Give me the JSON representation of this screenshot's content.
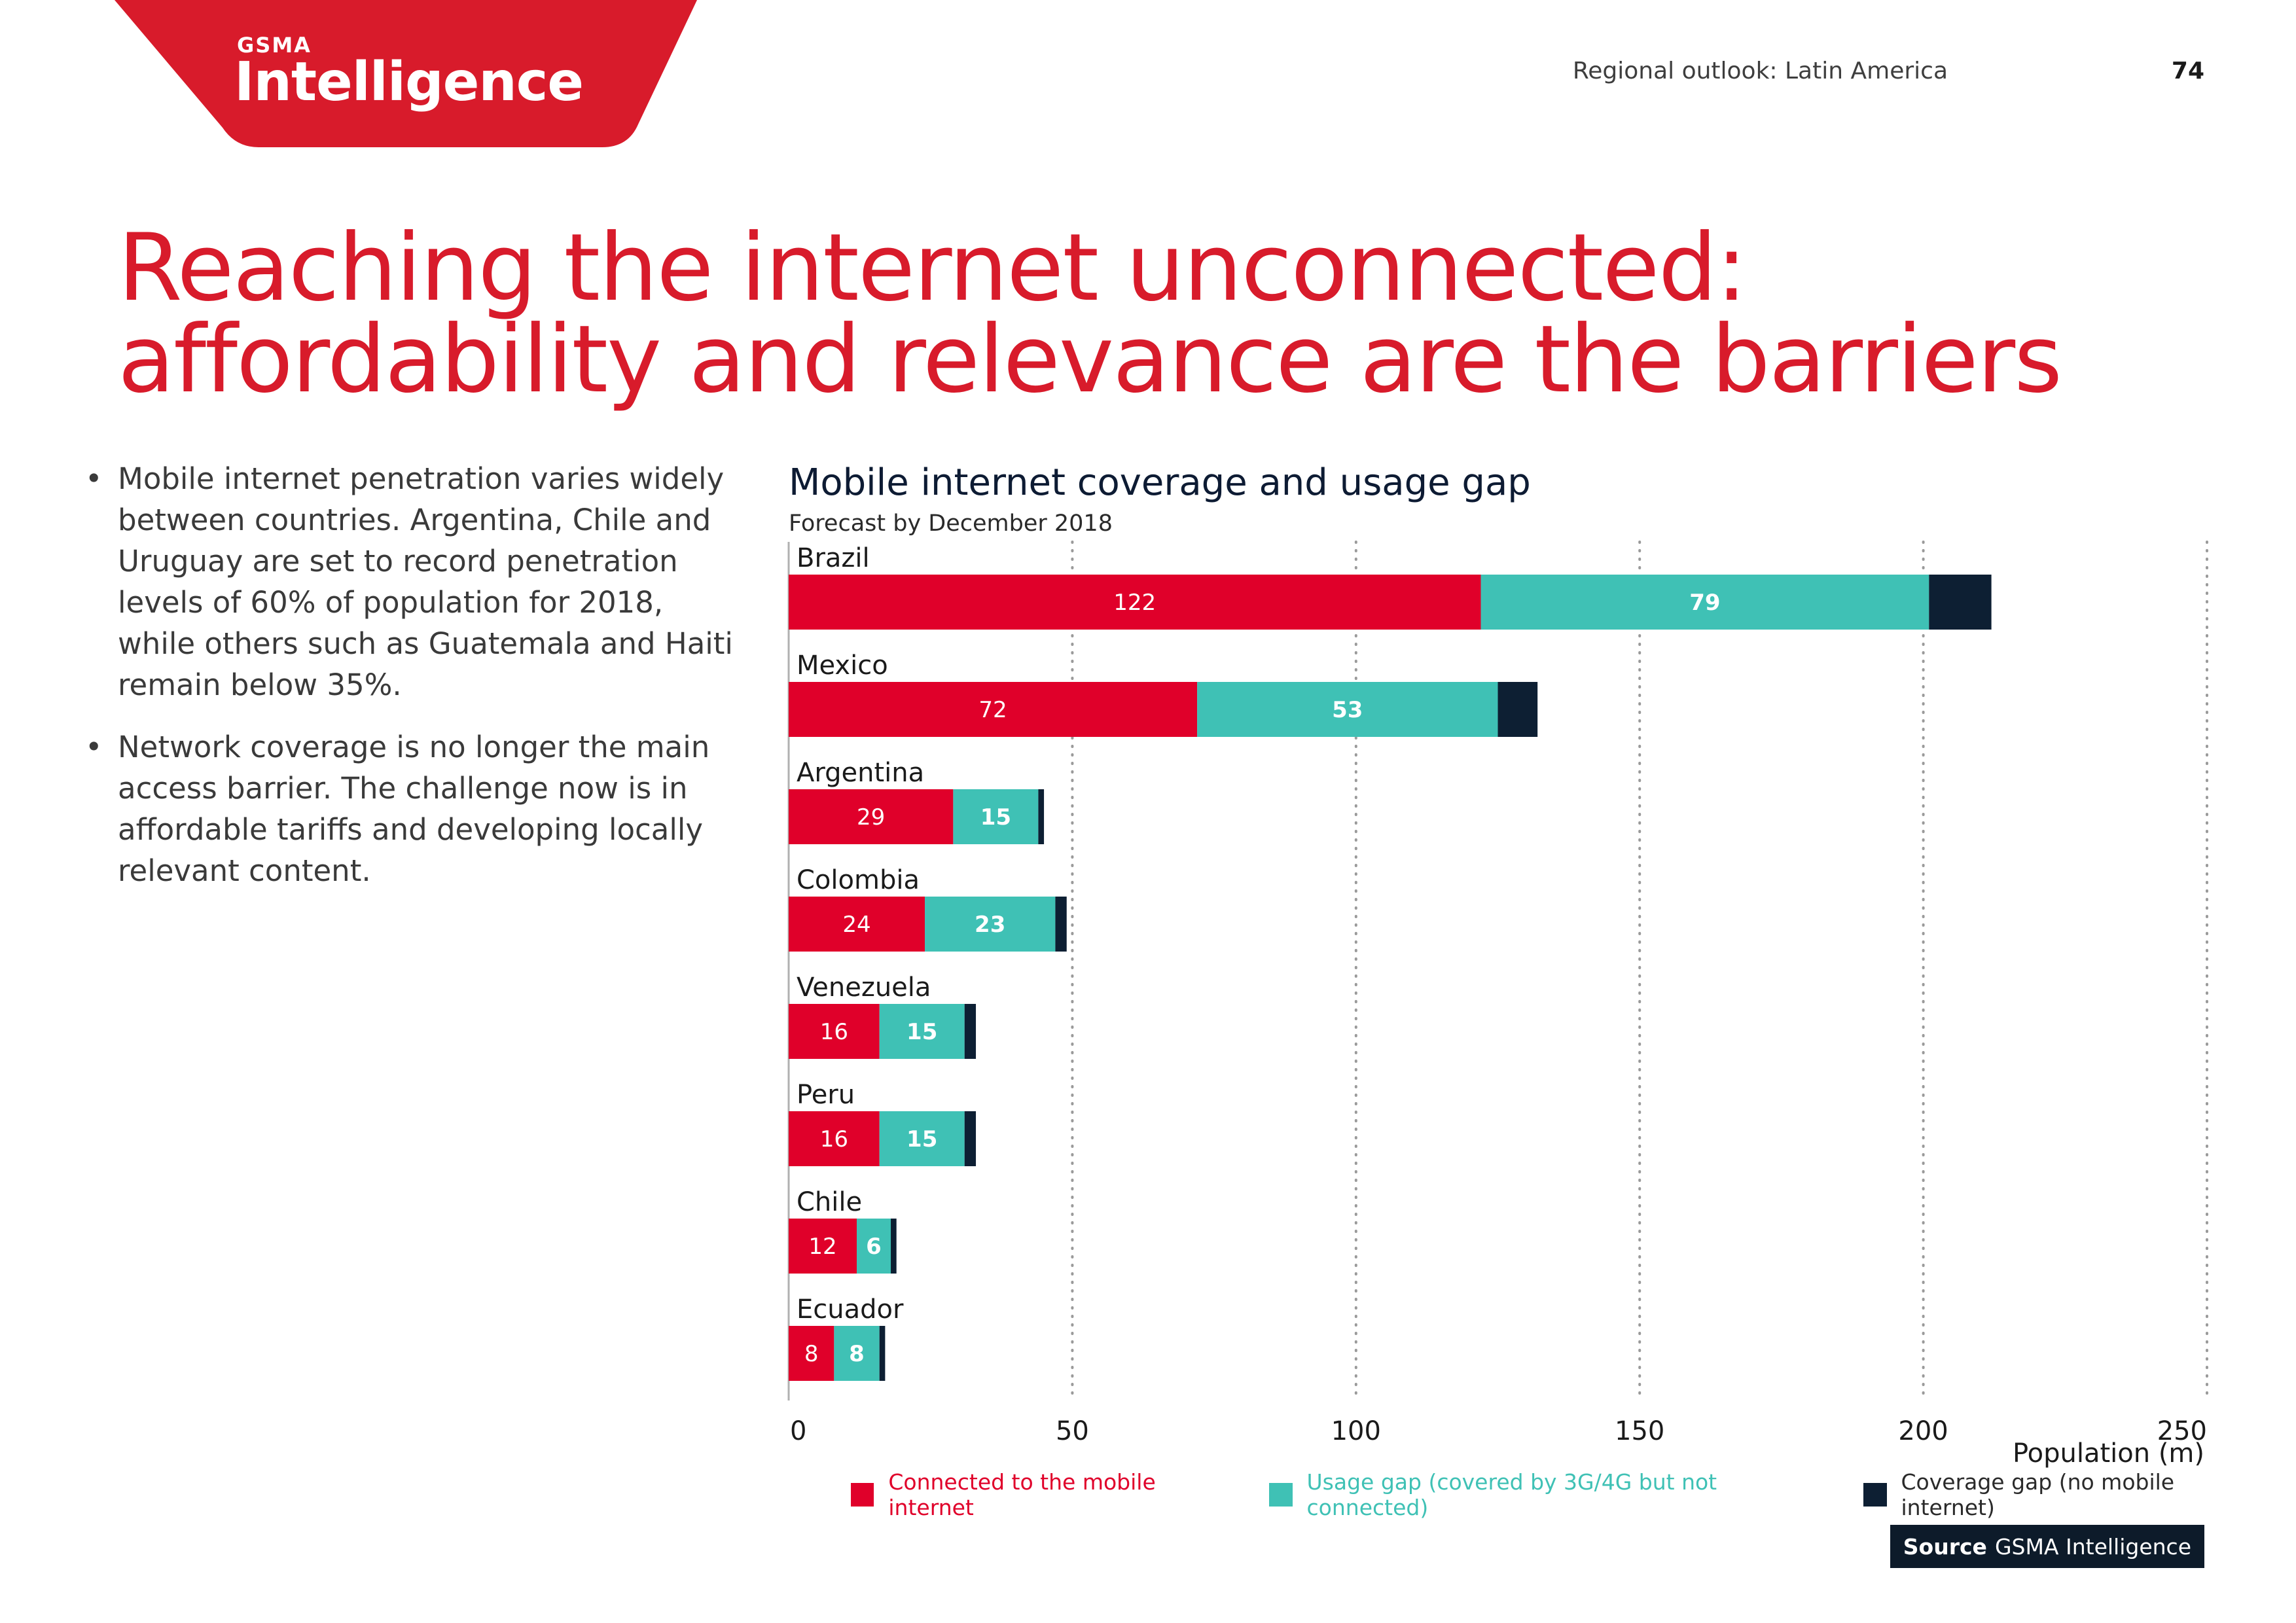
{
  "header": {
    "logo_small": "GSMA",
    "logo_big": "Intelligence",
    "section_title": "Regional outlook: Latin America",
    "page_number": "74"
  },
  "headline": {
    "line1": "Reaching the internet unconnected:",
    "line2": "affordability and relevance are the barriers"
  },
  "bullets": [
    "Mobile internet penetration varies widely between countries. Argentina, Chile and Uruguay are set to record penetration levels of 60% of population for 2018, while others such as Guatemala and Haiti remain below 35%.",
    "Network coverage is no longer the main access barrier. The challenge now is in affordable tariffs and developing locally relevant content."
  ],
  "colors": {
    "brand_red": "#d81b2b",
    "connected": "#e0002a",
    "usage_gap": "#3fc1b5",
    "coverage_gap": "#0d1f33"
  },
  "chart_data": {
    "type": "bar",
    "orientation": "horizontal",
    "stacked": true,
    "title": "Mobile internet coverage and usage gap",
    "subtitle": "Forecast by December 2018",
    "xlabel": "Population (m)",
    "xlim": [
      0,
      250
    ],
    "xticks": [
      0,
      50,
      100,
      150,
      200,
      250
    ],
    "grid": "vertical dotted",
    "legend_position": "bottom",
    "categories": [
      "Brazil",
      "Mexico",
      "Argentina",
      "Colombia",
      "Venezuela",
      "Peru",
      "Chile",
      "Ecuador"
    ],
    "series": [
      {
        "name": "Connected to the mobile internet",
        "color": "#e0002a",
        "values": [
          122,
          72,
          29,
          24,
          16,
          16,
          12,
          8
        ]
      },
      {
        "name": "Usage gap (covered by 3G/4G but not connected)",
        "color": "#3fc1b5",
        "values": [
          79,
          53,
          15,
          23,
          15,
          15,
          6,
          8
        ]
      },
      {
        "name": "Coverage gap (no mobile internet)",
        "color": "#0d1f33",
        "values": [
          11,
          7,
          1,
          2,
          2,
          2,
          1,
          1
        ]
      }
    ]
  },
  "source": {
    "label": "Source",
    "text": "GSMA Intelligence"
  }
}
